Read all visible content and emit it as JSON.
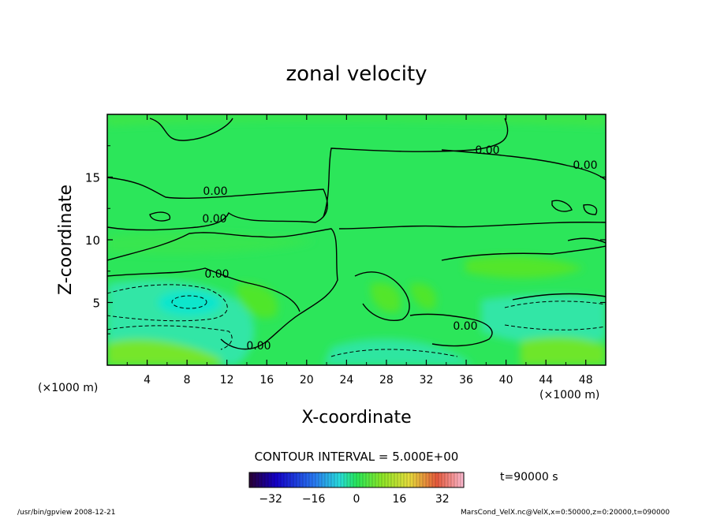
{
  "chart_data": {
    "type": "heatmap",
    "title": "zonal velocity",
    "xlabel": "X-coordinate",
    "ylabel": "Z-coordinate",
    "x_unit": "(×1000 m)",
    "z_unit": "(×1000 m)",
    "xlim": [
      0,
      50
    ],
    "ylim": [
      0,
      20
    ],
    "x_ticks": [
      4,
      8,
      12,
      16,
      20,
      24,
      28,
      32,
      36,
      40,
      44,
      48
    ],
    "y_ticks": [
      5,
      10,
      15
    ],
    "contour_interval_text": "CONTOUR INTERVAL = 5.000E+00",
    "contour_labels": [
      "0.00",
      "0.00",
      "0.00",
      "0.00",
      "0.00",
      "0.00",
      "0.00"
    ],
    "colorbar": {
      "range": [
        -40,
        40
      ],
      "ticks": [
        -32,
        -16,
        0,
        16,
        32
      ]
    },
    "time_text": "t=90000 s",
    "footer_left": "/usr/bin/gpview   2008-12-21",
    "footer_right": "MarsCond_VelX.nc@VelX,x=0:50000,z=0:20000,t=090000",
    "colors": {
      "field_base": "#2ce65a",
      "negative_band": "#32e6b0",
      "strong_negative": "#00e6d2",
      "positive_band": "#78e62c",
      "contour": "#000000"
    }
  }
}
